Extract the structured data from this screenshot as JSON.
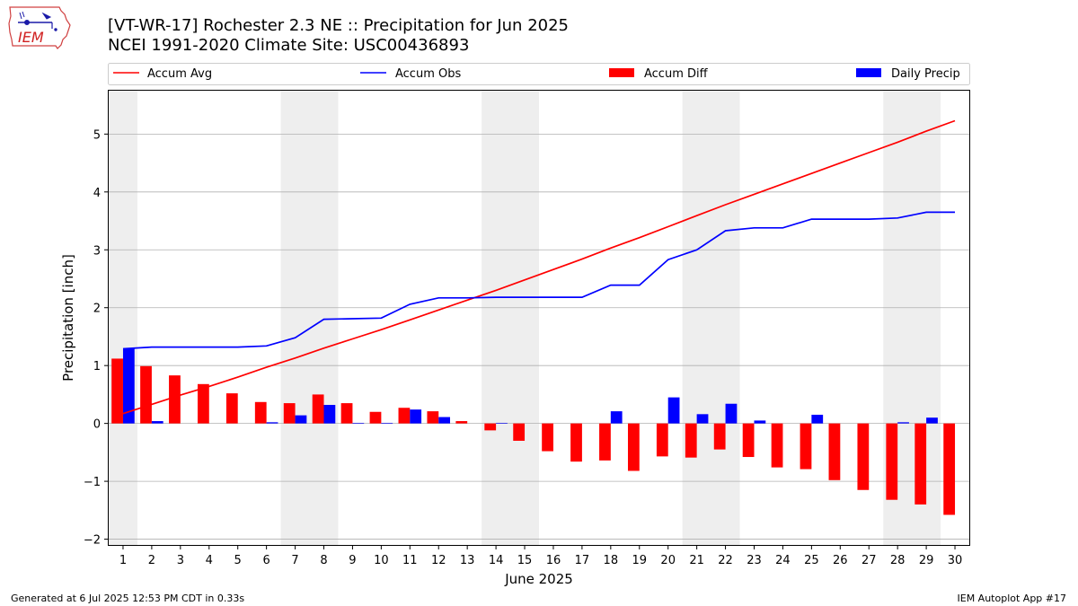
{
  "header": {
    "title_line1": "[VT-WR-17] Rochester 2.3 NE :: Precipitation for Jun 2025",
    "title_line2": "NCEI 1991-2020 Climate Site: USC00436893",
    "logo_text": "IEM"
  },
  "footer": {
    "left": "Generated at 6 Jul 2025 12:53 PM CDT in 0.33s",
    "right": "IEM Autoplot App #17"
  },
  "colors": {
    "accum_avg": "#ff0000",
    "accum_obs": "#0000ff",
    "accum_diff": "#ff0000",
    "daily_precip": "#0000ff",
    "weekend_shade": "#eeeeee",
    "grid": "#b0b0b0"
  },
  "chart_data": {
    "type": "bar",
    "xlabel": "June 2025",
    "ylabel": "Precipitation [inch]",
    "ylim": [
      -2.1,
      5.75
    ],
    "xlim": [
      0.5,
      30.5
    ],
    "yticks": [
      -2,
      -1,
      0,
      1,
      2,
      3,
      4,
      5
    ],
    "ytick_labels": [
      "−2",
      "−1",
      "0",
      "1",
      "2",
      "3",
      "4",
      "5"
    ],
    "grid": "horizontal",
    "legend_position": "top",
    "days": [
      1,
      2,
      3,
      4,
      5,
      6,
      7,
      8,
      9,
      10,
      11,
      12,
      13,
      14,
      15,
      16,
      17,
      18,
      19,
      20,
      21,
      22,
      23,
      24,
      25,
      26,
      27,
      28,
      29,
      30
    ],
    "weekend_spans": [
      [
        0.5,
        1.5
      ],
      [
        6.5,
        8.5
      ],
      [
        13.5,
        15.5
      ],
      [
        20.5,
        22.5
      ],
      [
        27.5,
        29.5
      ]
    ],
    "series": [
      {
        "name": "Accum Avg",
        "kind": "line",
        "values": [
          0.17,
          0.33,
          0.49,
          0.64,
          0.8,
          0.97,
          1.13,
          1.3,
          1.46,
          1.62,
          1.79,
          1.96,
          2.13,
          2.3,
          2.48,
          2.66,
          2.84,
          3.03,
          3.21,
          3.4,
          3.59,
          3.78,
          3.96,
          4.14,
          4.32,
          4.5,
          4.68,
          4.86,
          5.05,
          5.23
        ]
      },
      {
        "name": "Accum Obs",
        "kind": "line",
        "values": [
          1.29,
          1.32,
          1.32,
          1.32,
          1.32,
          1.34,
          1.48,
          1.8,
          1.81,
          1.82,
          2.06,
          2.17,
          2.17,
          2.18,
          2.18,
          2.18,
          2.18,
          2.39,
          2.39,
          2.83,
          3.0,
          3.33,
          3.38,
          3.38,
          3.53,
          3.53,
          3.53,
          3.55,
          3.65,
          3.65
        ]
      },
      {
        "name": "Accum Diff",
        "kind": "bar",
        "values": [
          1.12,
          0.99,
          0.83,
          0.68,
          0.52,
          0.37,
          0.35,
          0.5,
          0.35,
          0.2,
          0.27,
          0.21,
          0.04,
          -0.12,
          -0.3,
          -0.48,
          -0.66,
          -0.64,
          -0.82,
          -0.57,
          -0.59,
          -0.45,
          -0.58,
          -0.76,
          -0.79,
          -0.98,
          -1.15,
          -1.32,
          -1.4,
          -1.58
        ]
      },
      {
        "name": "Daily Precip",
        "kind": "bar",
        "values": [
          1.29,
          0.04,
          0.0,
          0.0,
          0.0,
          0.02,
          0.14,
          0.32,
          0.01,
          0.01,
          0.24,
          0.11,
          0.0,
          0.01,
          0.0,
          0.0,
          0.0,
          0.21,
          0.0,
          0.45,
          0.16,
          0.34,
          0.05,
          0.0,
          0.15,
          0.0,
          0.0,
          0.02,
          0.1,
          0.0
        ]
      }
    ]
  }
}
